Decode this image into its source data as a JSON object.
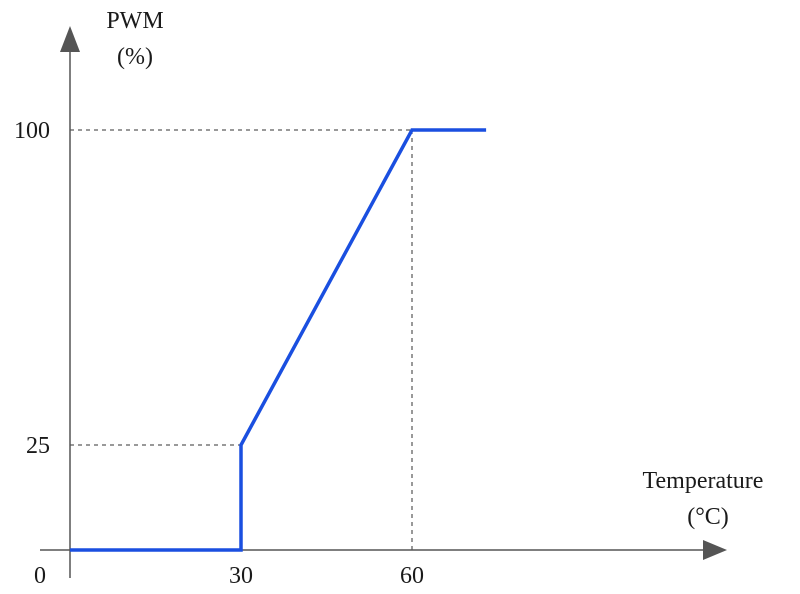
{
  "chart_data": {
    "type": "line",
    "ylabel_line1": "PWM",
    "ylabel_line2": "(%)",
    "xlabel_line1": "Temperature",
    "xlabel_line2": "(°C)",
    "origin_label": "0",
    "x_ticks": [
      30,
      60
    ],
    "y_ticks": [
      25,
      100
    ],
    "xlim": [
      0,
      73
    ],
    "ylim": [
      0,
      100
    ],
    "series": [
      {
        "x": [
          0,
          30,
          30,
          60,
          73
        ],
        "y": [
          0,
          0,
          25,
          100,
          100
        ]
      }
    ],
    "reference_lines": [
      {
        "from": [
          0,
          25
        ],
        "to": [
          30,
          25
        ]
      },
      {
        "from": [
          0,
          100
        ],
        "to": [
          60,
          100
        ]
      },
      {
        "from": [
          60,
          0
        ],
        "to": [
          60,
          100
        ]
      }
    ],
    "line_color": "#1a4fe0",
    "axis_color": "#555555",
    "grid": false
  }
}
